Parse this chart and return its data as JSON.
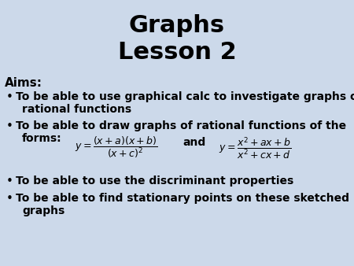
{
  "title_line1": "Graphs",
  "title_line2": "Lesson 2",
  "background_color": "#ccd9ea",
  "title_color": "#000000",
  "text_color": "#000000",
  "aims_label": "Aims:",
  "fig_width": 4.5,
  "fig_height": 3.38,
  "dpi": 100
}
